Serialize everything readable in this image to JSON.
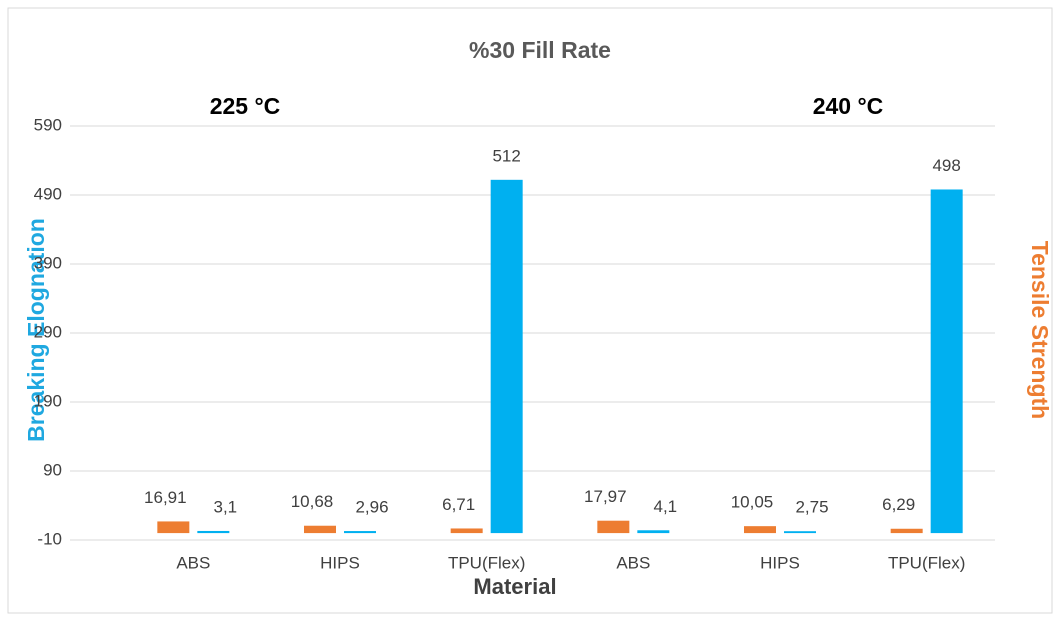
{
  "chart_data": {
    "type": "bar",
    "title": "%30 Fill Rate",
    "annotations": [
      "225 °C",
      "240 °C"
    ],
    "ylabel": "Breaking Elognation",
    "y2label": "Tensile Strength",
    "xlabel": "Material",
    "categories": [
      "ABS",
      "HIPS",
      "TPU(Flex)",
      "ABS",
      "HIPS",
      "TPU(Flex)"
    ],
    "series": [
      {
        "color": "#ed7d31",
        "values": [
          16.91,
          10.68,
          6.71,
          17.97,
          10.05,
          6.29
        ],
        "value_labels": [
          "16,91",
          "10,68",
          "6,71",
          "17,97",
          "10,05",
          "6,29"
        ]
      },
      {
        "color": "#00b0f0",
        "values": [
          3.1,
          2.96,
          512,
          4.1,
          2.75,
          498
        ],
        "value_labels": [
          "3,1",
          "2,96",
          "512",
          "4,1",
          "2,75",
          "498"
        ]
      }
    ],
    "ylim": [
      -10,
      590
    ],
    "yticks": [
      -10,
      90,
      190,
      290,
      390,
      490,
      590
    ],
    "grid": true
  }
}
